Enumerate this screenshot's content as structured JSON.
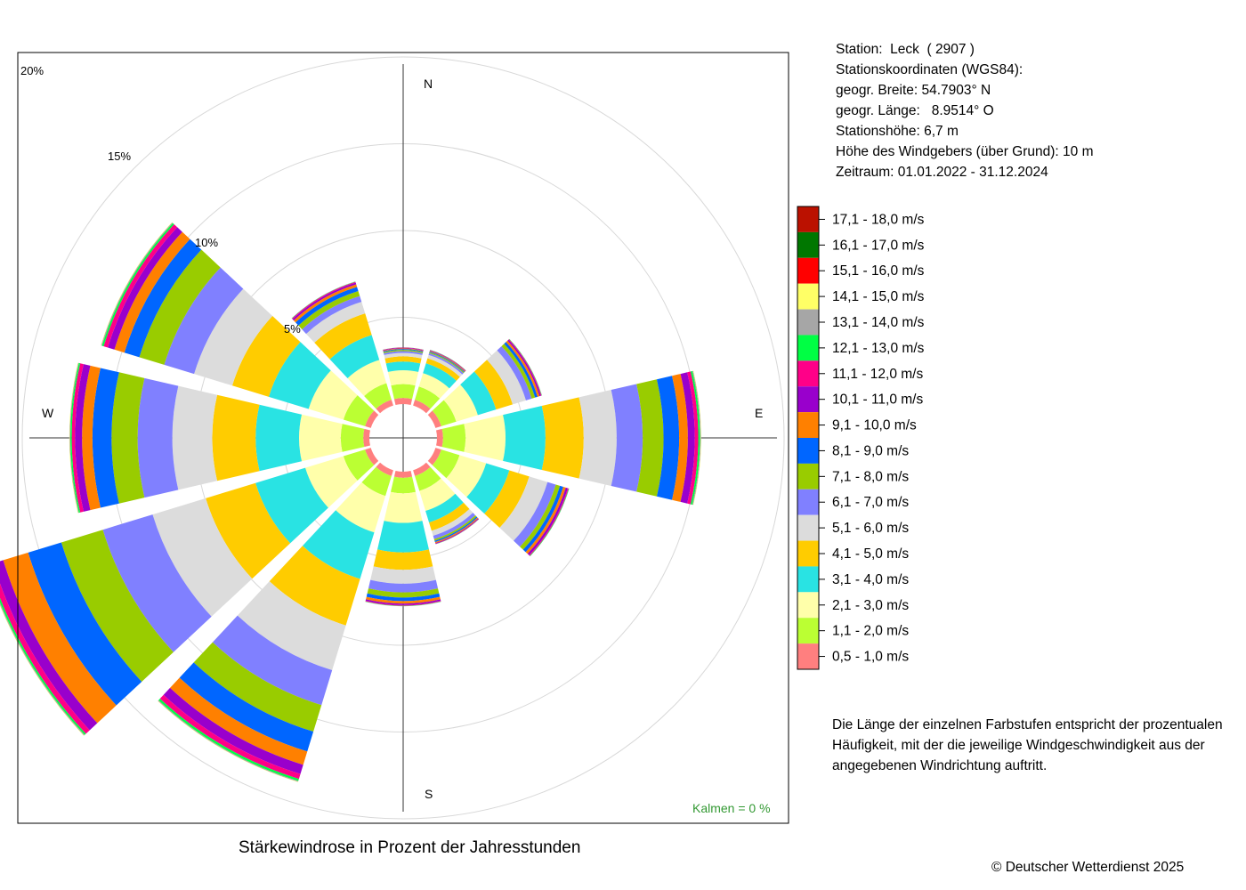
{
  "station": {
    "line_station": "Station:  Leck  ( 2907 )",
    "line_coords_heading": "Stationskoordinaten (WGS84):",
    "line_lat": "geogr. Breite: 54.7903° N",
    "line_lon": "geogr. Länge:   8.9514° O",
    "line_height": "Stationshöhe: 6,7 m",
    "line_sensor": "Höhe des Windgebers (über Grund): 10 m",
    "line_period": "Zeitraum: 01.01.2022 - 31.12.2024"
  },
  "note": "Die Länge der einzelnen Farbstufen entspricht der prozentualen Häufigkeit, mit der die jeweilige Windgeschwindigkeit aus der angegebenen Windrichtung auftritt.",
  "caption": "Stärkewindrose in Prozent der Jahresstunden",
  "copyright": "© Deutscher Wetterdienst  2025",
  "calm": {
    "label": "Kalmen  =  0 %",
    "value": 0,
    "color": "#339933"
  },
  "chart_data": {
    "type": "wind-rose",
    "title": "Stärkewindrose in Prozent der Jahresstunden",
    "radial_unit": "%",
    "radial_max": 20,
    "radial_ticks": [
      5,
      10,
      15,
      20
    ],
    "radial_tick_labels": [
      "5%",
      "10%",
      "15%",
      "20%"
    ],
    "compass_labels": [
      "N",
      "E",
      "S",
      "W"
    ],
    "grid": true,
    "legend_position": "right",
    "directions_deg": [
      0,
      30,
      60,
      90,
      120,
      150,
      180,
      210,
      240,
      270,
      300,
      330
    ],
    "speed_classes": [
      {
        "label": "0,5 - 1,0 m/s",
        "color": "#ff7f7f"
      },
      {
        "label": "1,1 - 2,0 m/s",
        "color": "#bbff33"
      },
      {
        "label": "2,1 - 3,0 m/s",
        "color": "#ffffaa"
      },
      {
        "label": "3,1 - 4,0 m/s",
        "color": "#29e3e3"
      },
      {
        "label": "4,1 - 5,0 m/s",
        "color": "#ffcc00"
      },
      {
        "label": "5,1 - 6,0 m/s",
        "color": "#dcdcdc"
      },
      {
        "label": "6,1 - 7,0 m/s",
        "color": "#8080ff"
      },
      {
        "label": "7,1 - 8,0 m/s",
        "color": "#99cc00"
      },
      {
        "label": "8,1 - 9,0 m/s",
        "color": "#0066ff"
      },
      {
        "label": "9,1 - 10,0 m/s",
        "color": "#ff8000"
      },
      {
        "label": "10,1 - 11,0 m/s",
        "color": "#9900cc"
      },
      {
        "label": "11,1 - 12,0 m/s",
        "color": "#ff0088"
      },
      {
        "label": "12,1 - 13,0 m/s",
        "color": "#00ff44"
      },
      {
        "label": "13,1 - 14,0 m/s",
        "color": "#a6a6a6"
      },
      {
        "label": "14,1 - 15,0 m/s",
        "color": "#ffff66"
      },
      {
        "label": "15,1 - 16,0 m/s",
        "color": "#ff0000"
      },
      {
        "label": "16,1 - 17,0 m/s",
        "color": "#007700"
      },
      {
        "label": "17,1 - 18,0 m/s",
        "color": "#bb1100"
      }
    ],
    "series": [
      {
        "direction": 0,
        "values": [
          0.35,
          0.8,
          0.8,
          0.5,
          0.3,
          0.2,
          0.1,
          0.07,
          0.05,
          0.04,
          0.03,
          0.02,
          0.01,
          0,
          0,
          0,
          0,
          0
        ]
      },
      {
        "direction": 30,
        "values": [
          0.35,
          0.8,
          0.8,
          0.6,
          0.3,
          0.2,
          0.1,
          0.06,
          0.05,
          0.04,
          0.03,
          0.02,
          0.01,
          0,
          0,
          0,
          0,
          0
        ]
      },
      {
        "direction": 60,
        "values": [
          0.35,
          0.9,
          1.3,
          1.1,
          1.0,
          0.8,
          0.35,
          0.2,
          0.15,
          0.12,
          0.08,
          0.04,
          0.02,
          0.01,
          0,
          0,
          0,
          0
        ]
      },
      {
        "direction": 90,
        "values": [
          0.35,
          1.3,
          2.3,
          2.3,
          2.2,
          1.9,
          1.5,
          1.2,
          0.9,
          0.5,
          0.4,
          0.2,
          0.1,
          0.05,
          0.02,
          0,
          0,
          0
        ]
      },
      {
        "direction": 120,
        "values": [
          0.35,
          1.1,
          1.6,
          1.4,
          1.2,
          1.1,
          0.5,
          0.25,
          0.2,
          0.15,
          0.12,
          0.05,
          0.03,
          0.01,
          0,
          0,
          0,
          0
        ]
      },
      {
        "direction": 150,
        "values": [
          0.35,
          0.9,
          1.2,
          0.7,
          0.5,
          0.3,
          0.2,
          0.1,
          0.08,
          0.06,
          0.04,
          0.02,
          0.01,
          0,
          0,
          0,
          0,
          0
        ]
      },
      {
        "direction": 180,
        "values": [
          0.35,
          0.9,
          1.7,
          1.7,
          1.0,
          0.8,
          0.5,
          0.3,
          0.2,
          0.15,
          0.08,
          0.04,
          0.02,
          0.01,
          0,
          0,
          0,
          0
        ]
      },
      {
        "direction": 210,
        "values": [
          0.35,
          1.2,
          2.2,
          2.8,
          2.8,
          2.7,
          2.1,
          1.6,
          1.2,
          0.8,
          0.55,
          0.3,
          0.12,
          0.05,
          0.02,
          0,
          0,
          0
        ]
      },
      {
        "direction": 240,
        "values": [
          0.35,
          1.3,
          2.3,
          3.0,
          3.0,
          3.2,
          3.0,
          2.5,
          2.0,
          1.5,
          0.6,
          0.3,
          0.1,
          0.05,
          0.02,
          0,
          0,
          0
        ]
      },
      {
        "direction": 270,
        "values": [
          0.35,
          1.3,
          2.4,
          2.5,
          2.5,
          2.3,
          2.0,
          1.5,
          1.1,
          0.6,
          0.4,
          0.2,
          0.08,
          0.04,
          0.02,
          0,
          0,
          0
        ]
      },
      {
        "direction": 300,
        "values": [
          0.35,
          1.3,
          2.1,
          2.4,
          2.2,
          2.3,
          1.8,
          1.5,
          0.9,
          0.6,
          0.4,
          0.25,
          0.1,
          0.05,
          0.02,
          0,
          0,
          0
        ]
      },
      {
        "direction": 330,
        "values": [
          0.35,
          1.0,
          1.4,
          1.5,
          1.3,
          0.7,
          0.35,
          0.3,
          0.25,
          0.15,
          0.1,
          0.05,
          0.02,
          0.01,
          0,
          0,
          0,
          0
        ]
      }
    ]
  }
}
